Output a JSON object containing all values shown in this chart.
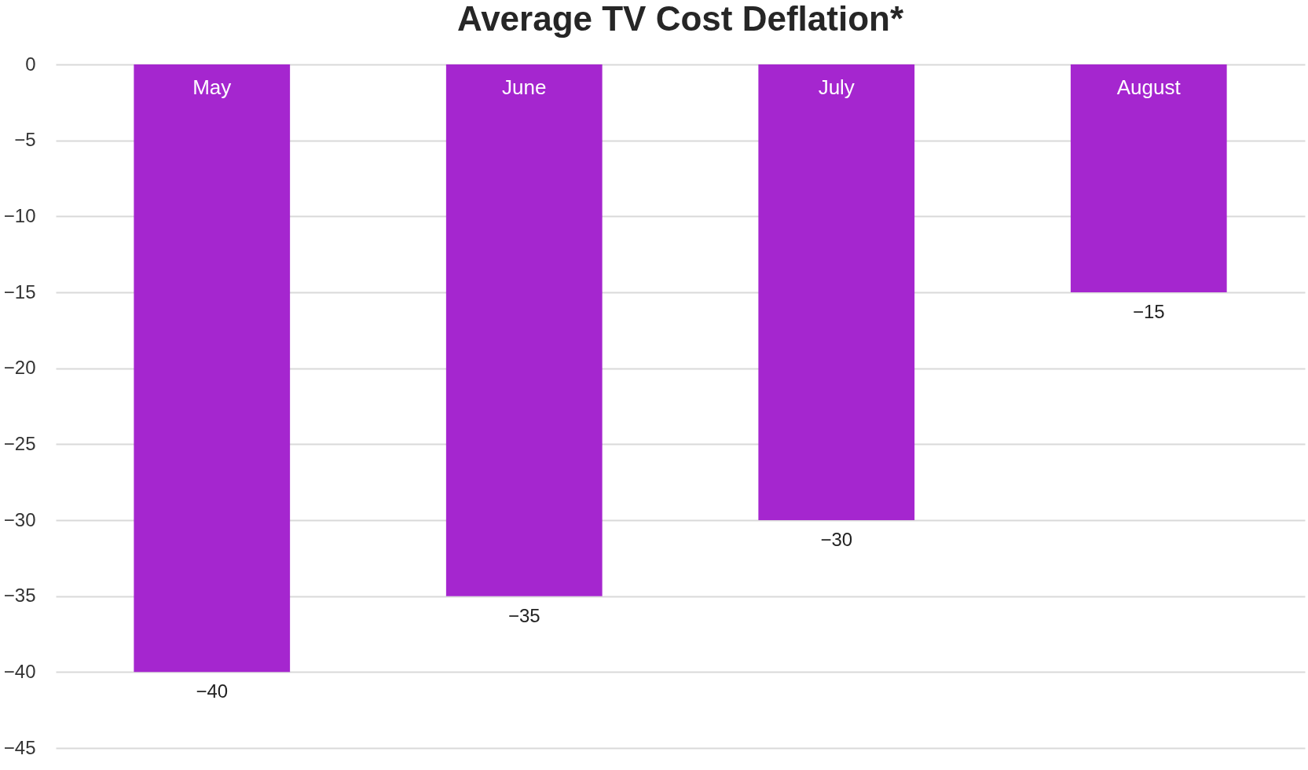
{
  "chart_data": {
    "type": "bar",
    "title": "Average TV Cost Deflation*",
    "categories": [
      "May",
      "June",
      "July",
      "August"
    ],
    "values": [
      -40,
      -35,
      -30,
      -15
    ],
    "color": "#a526cf",
    "ylim": [
      -45,
      0
    ],
    "yticks": [
      0,
      -5,
      -10,
      -15,
      -20,
      -25,
      -30,
      -35,
      -40,
      -45
    ],
    "grid": "y",
    "data_labels": true
  }
}
